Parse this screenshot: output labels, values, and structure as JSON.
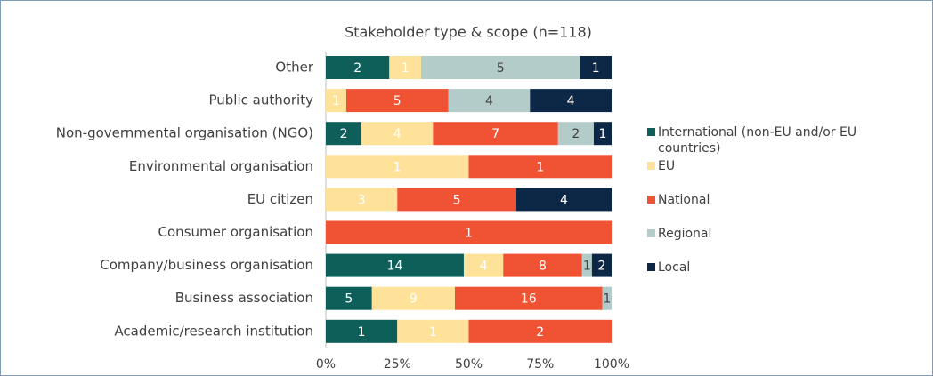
{
  "chart_data": {
    "type": "bar",
    "orientation": "horizontal",
    "stacking": "percent",
    "title": "Stakeholder type & scope  (n=118)",
    "categories": [
      "Other",
      "Public authority",
      "Non-governmental organisation (NGO)",
      "Environmental organisation",
      "EU citizen",
      "Consumer organisation",
      "Company/business organisation",
      "Business association",
      "Academic/research institution"
    ],
    "series": [
      {
        "name": "International (non-EU and/or EU countries)",
        "color": "#0e5e5a",
        "values": [
          2,
          null,
          2,
          null,
          null,
          null,
          14,
          5,
          1
        ]
      },
      {
        "name": "EU",
        "color": "#ffe29a",
        "values": [
          1,
          1,
          4,
          1,
          3,
          null,
          4,
          9,
          1
        ]
      },
      {
        "name": "National",
        "color": "#f05234",
        "values": [
          null,
          5,
          7,
          1,
          5,
          1,
          8,
          16,
          2
        ]
      },
      {
        "name": "Regional",
        "color": "#b3ccca",
        "values": [
          5,
          4,
          2,
          null,
          null,
          null,
          1,
          1,
          null
        ]
      },
      {
        "name": "Local",
        "color": "#0c2846",
        "values": [
          1,
          4,
          1,
          null,
          4,
          null,
          2,
          null,
          null
        ]
      }
    ],
    "xlim": [
      0,
      100
    ],
    "xticks": [
      {
        "value": 0,
        "label": "0%"
      },
      {
        "value": 25,
        "label": "25%"
      },
      {
        "value": 50,
        "label": "50%"
      },
      {
        "value": 75,
        "label": "75%"
      },
      {
        "value": 100,
        "label": "100%"
      }
    ],
    "legend": "right"
  }
}
